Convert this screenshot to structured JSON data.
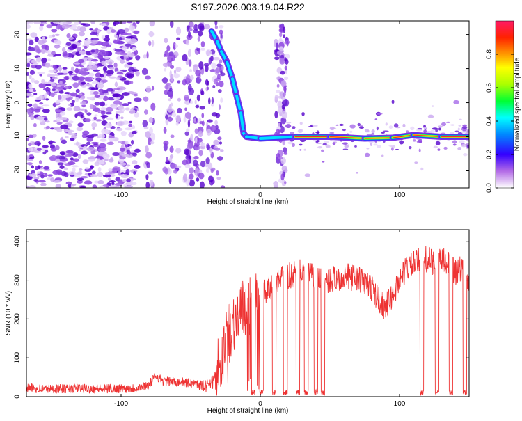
{
  "title": "S197.2026.003.19.04.R22",
  "chart_data": [
    {
      "type": "heatmap",
      "id": "spectrogram",
      "xlabel": "Height of straight line (km)",
      "ylabel": "Frequency (Hz)",
      "xlim": [
        -168,
        150
      ],
      "ylim": [
        -25,
        24
      ],
      "xticks": [
        -100,
        0,
        100
      ],
      "yticks": [
        -20,
        -10,
        0,
        10,
        20
      ],
      "tone_track": [
        {
          "x": -35,
          "y": 21
        },
        {
          "x": -31,
          "y": 18
        },
        {
          "x": -28,
          "y": 15
        },
        {
          "x": -24,
          "y": 12
        },
        {
          "x": -20,
          "y": 7
        },
        {
          "x": -17,
          "y": 2
        },
        {
          "x": -14,
          "y": -3
        },
        {
          "x": -12,
          "y": -9
        },
        {
          "x": -10,
          "y": -10
        },
        {
          "x": 0,
          "y": -10.5
        },
        {
          "x": 25,
          "y": -10
        },
        {
          "x": 50,
          "y": -10
        },
        {
          "x": 75,
          "y": -10.5
        },
        {
          "x": 95,
          "y": -10.3
        },
        {
          "x": 110,
          "y": -9.5
        },
        {
          "x": 130,
          "y": -10
        },
        {
          "x": 150,
          "y": -10
        }
      ],
      "colorbar": {
        "label": "Normalized spectral amplitude",
        "range": [
          0.0,
          1.0
        ],
        "ticks": [
          "0.0",
          "0.2",
          "0.4",
          "0.6",
          "0.8"
        ],
        "colors": [
          "#ffffff",
          "#8a2be2",
          "#0000ff",
          "#00ffff",
          "#00ff00",
          "#ffff00",
          "#ffa500",
          "#ff0000",
          "#ff1493"
        ]
      }
    },
    {
      "type": "line",
      "id": "snr",
      "xlabel": "Height of straight line (km)",
      "ylabel": "SNR (10 * v/v)",
      "xlim": [
        -168,
        150
      ],
      "ylim": [
        0,
        430
      ],
      "xticks": [
        -100,
        0,
        100
      ],
      "yticks": [
        0,
        100,
        200,
        300,
        400
      ],
      "color": "#ee3333",
      "series": [
        {
          "name": "SNR",
          "x": [
            -168,
            -150,
            -130,
            -110,
            -90,
            -80,
            -75,
            -70,
            -60,
            -50,
            -40,
            -35,
            -30,
            -25,
            -20,
            -15,
            -10,
            -5,
            0,
            5,
            10,
            20,
            30,
            40,
            50,
            60,
            70,
            80,
            85,
            90,
            95,
            100,
            105,
            110,
            115,
            120,
            125,
            130,
            135,
            140,
            145,
            150
          ],
          "y": [
            22,
            20,
            21,
            20,
            22,
            30,
            55,
            40,
            38,
            35,
            30,
            40,
            80,
            140,
            190,
            210,
            230,
            240,
            260,
            270,
            290,
            310,
            320,
            305,
            300,
            310,
            305,
            280,
            250,
            230,
            260,
            300,
            330,
            340,
            350,
            355,
            340,
            350,
            345,
            320,
            330,
            300
          ]
        }
      ],
      "dropouts_x": [
        -5,
        1,
        10,
        18,
        27,
        33,
        40,
        45,
        116,
        127,
        137,
        147
      ]
    }
  ]
}
